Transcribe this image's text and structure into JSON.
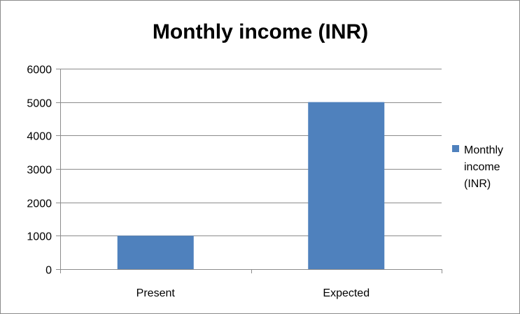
{
  "chart_data": {
    "type": "bar",
    "title": "Monthly income (INR)",
    "categories": [
      "Present",
      "Expected"
    ],
    "series": [
      {
        "name": "Monthly income (INR)",
        "values": [
          1000,
          5000
        ],
        "color": "#4f81bd"
      }
    ],
    "ylim": [
      0,
      6000
    ],
    "yticks": [
      0,
      1000,
      2000,
      3000,
      4000,
      5000,
      6000
    ],
    "xlabel": "",
    "ylabel": "",
    "grid": true,
    "legend_position": "right",
    "legend_lines": [
      "Monthly",
      "income",
      "(INR)"
    ]
  }
}
